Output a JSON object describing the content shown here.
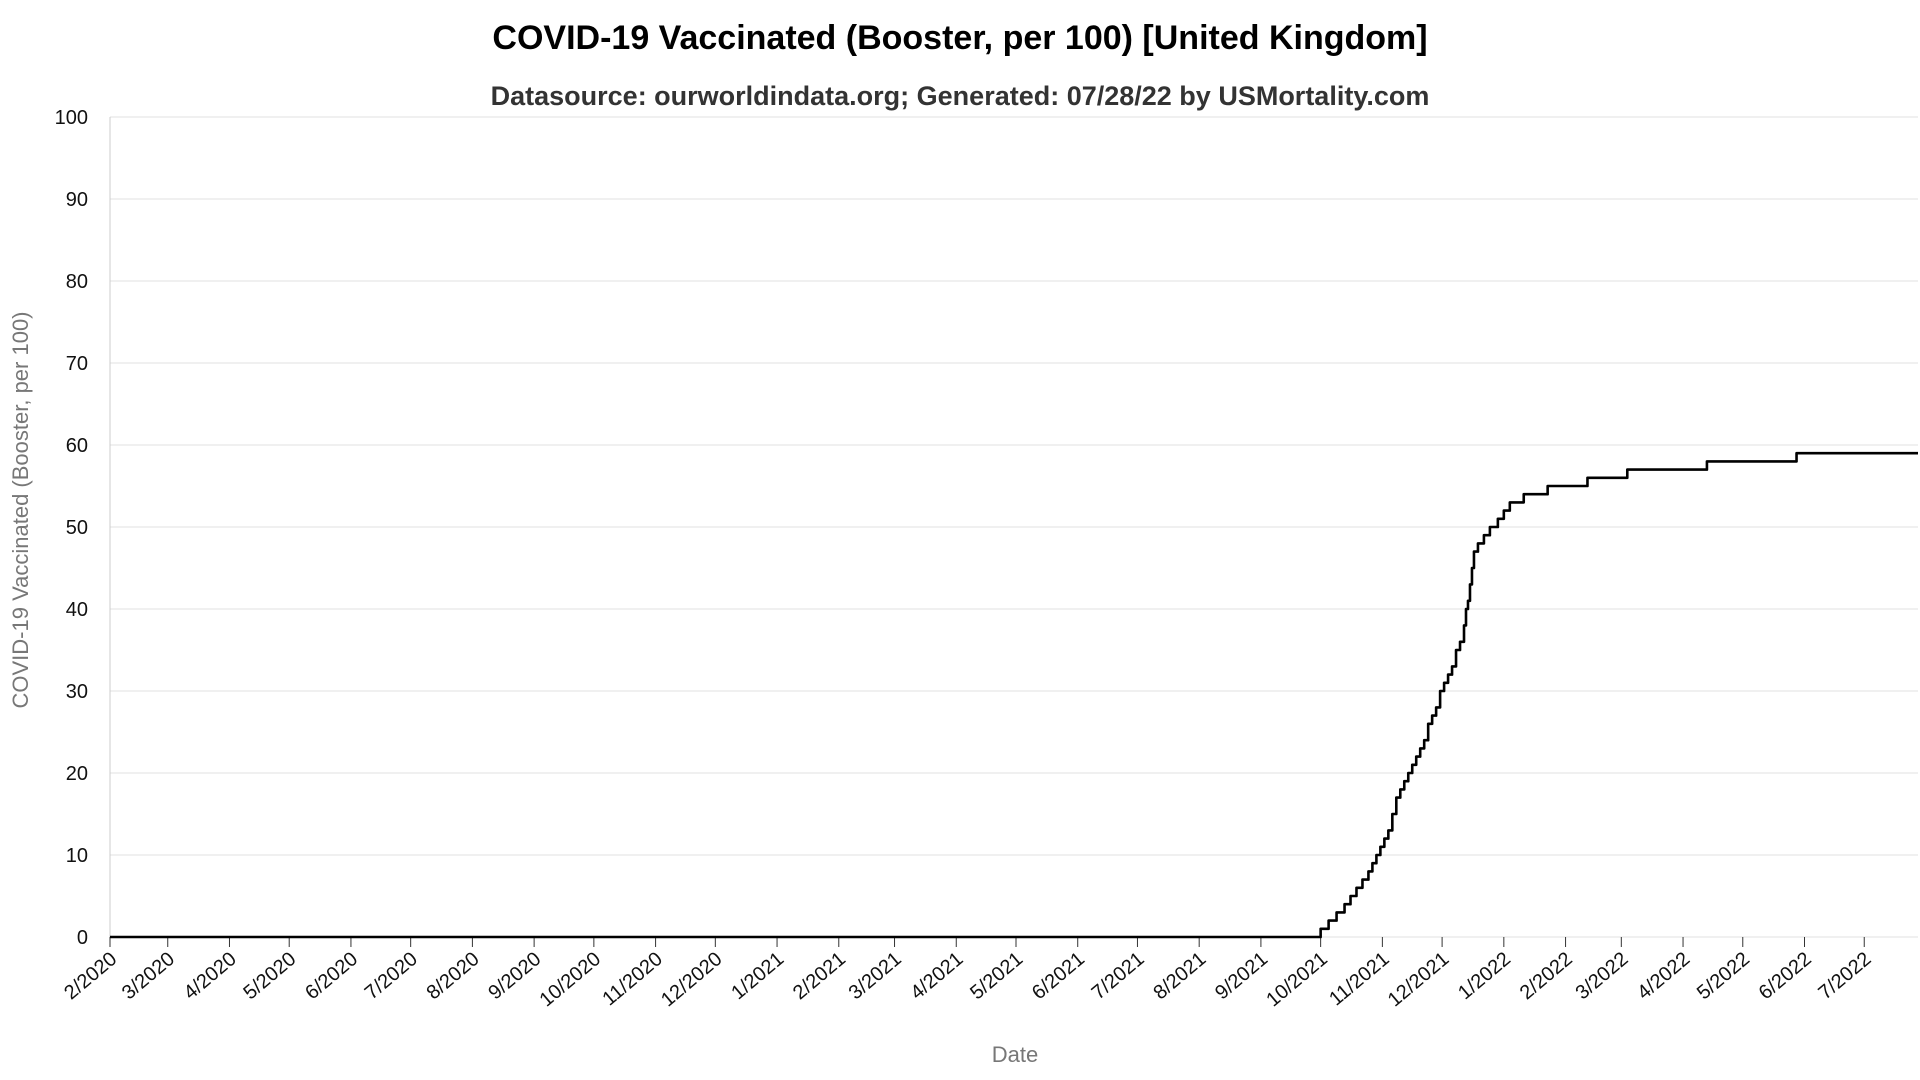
{
  "chart_data": {
    "type": "line",
    "title": "COVID-19 Vaccinated (Booster, per 100) [United Kingdom]",
    "subtitle": "Datasource: ourworldindata.org; Generated: 07/28/22 by USMortality.com",
    "xlabel": "Date",
    "ylabel": "COVID-19 Vaccinated (Booster, per 100)",
    "ylim": [
      0,
      100
    ],
    "yticks": [
      0,
      10,
      20,
      30,
      40,
      50,
      60,
      70,
      80,
      90,
      100
    ],
    "xlim": [
      "2020-02-01",
      "2022-07-28"
    ],
    "x_tick_dates": [
      "2020-02-01",
      "2020-03-01",
      "2020-04-01",
      "2020-05-01",
      "2020-06-01",
      "2020-07-01",
      "2020-08-01",
      "2020-09-01",
      "2020-10-01",
      "2020-11-01",
      "2020-12-01",
      "2021-01-01",
      "2021-02-01",
      "2021-03-01",
      "2021-04-01",
      "2021-05-01",
      "2021-06-01",
      "2021-07-01",
      "2021-08-01",
      "2021-09-01",
      "2021-10-01",
      "2021-11-01",
      "2021-12-01",
      "2022-01-01",
      "2022-02-01",
      "2022-03-01",
      "2022-04-01",
      "2022-05-01",
      "2022-06-01",
      "2022-07-01"
    ],
    "x_tick_labels": [
      "2/2020",
      "3/2020",
      "4/2020",
      "5/2020",
      "6/2020",
      "7/2020",
      "8/2020",
      "9/2020",
      "10/2020",
      "11/2020",
      "12/2020",
      "1/2021",
      "2/2021",
      "3/2021",
      "4/2021",
      "5/2021",
      "6/2021",
      "7/2021",
      "8/2021",
      "9/2021",
      "10/2021",
      "11/2021",
      "12/2021",
      "1/2022",
      "2/2022",
      "3/2022",
      "4/2022",
      "5/2022",
      "6/2022",
      "7/2022"
    ],
    "grid": "horizontal",
    "legend": "none",
    "series": [
      {
        "color": "#000000",
        "step": true,
        "points": [
          [
            "2020-02-01",
            0
          ],
          [
            "2021-09-26",
            0
          ],
          [
            "2021-10-01",
            1
          ],
          [
            "2021-10-05",
            2
          ],
          [
            "2021-10-09",
            3
          ],
          [
            "2021-10-13",
            4
          ],
          [
            "2021-10-16",
            5
          ],
          [
            "2021-10-19",
            6
          ],
          [
            "2021-10-22",
            7
          ],
          [
            "2021-10-25",
            8
          ],
          [
            "2021-10-27",
            9
          ],
          [
            "2021-10-29",
            10
          ],
          [
            "2021-10-31",
            11
          ],
          [
            "2021-11-02",
            12
          ],
          [
            "2021-11-04",
            13
          ],
          [
            "2021-11-06",
            15
          ],
          [
            "2021-11-08",
            17
          ],
          [
            "2021-11-10",
            18
          ],
          [
            "2021-11-12",
            19
          ],
          [
            "2021-11-14",
            20
          ],
          [
            "2021-11-16",
            21
          ],
          [
            "2021-11-18",
            22
          ],
          [
            "2021-11-20",
            23
          ],
          [
            "2021-11-22",
            24
          ],
          [
            "2021-11-24",
            26
          ],
          [
            "2021-11-26",
            27
          ],
          [
            "2021-11-28",
            28
          ],
          [
            "2021-11-30",
            30
          ],
          [
            "2021-12-02",
            31
          ],
          [
            "2021-12-04",
            32
          ],
          [
            "2021-12-06",
            33
          ],
          [
            "2021-12-08",
            35
          ],
          [
            "2021-12-10",
            36
          ],
          [
            "2021-12-12",
            38
          ],
          [
            "2021-12-13",
            40
          ],
          [
            "2021-12-14",
            41
          ],
          [
            "2021-12-15",
            43
          ],
          [
            "2021-12-16",
            45
          ],
          [
            "2021-12-17",
            47
          ],
          [
            "2021-12-19",
            48
          ],
          [
            "2021-12-22",
            49
          ],
          [
            "2021-12-25",
            50
          ],
          [
            "2021-12-29",
            51
          ],
          [
            "2022-01-01",
            52
          ],
          [
            "2022-01-04",
            53
          ],
          [
            "2022-01-11",
            54
          ],
          [
            "2022-01-23",
            55
          ],
          [
            "2022-02-12",
            56
          ],
          [
            "2022-03-04",
            57
          ],
          [
            "2022-04-13",
            58
          ],
          [
            "2022-05-28",
            59
          ],
          [
            "2022-07-28",
            59
          ]
        ]
      }
    ]
  }
}
